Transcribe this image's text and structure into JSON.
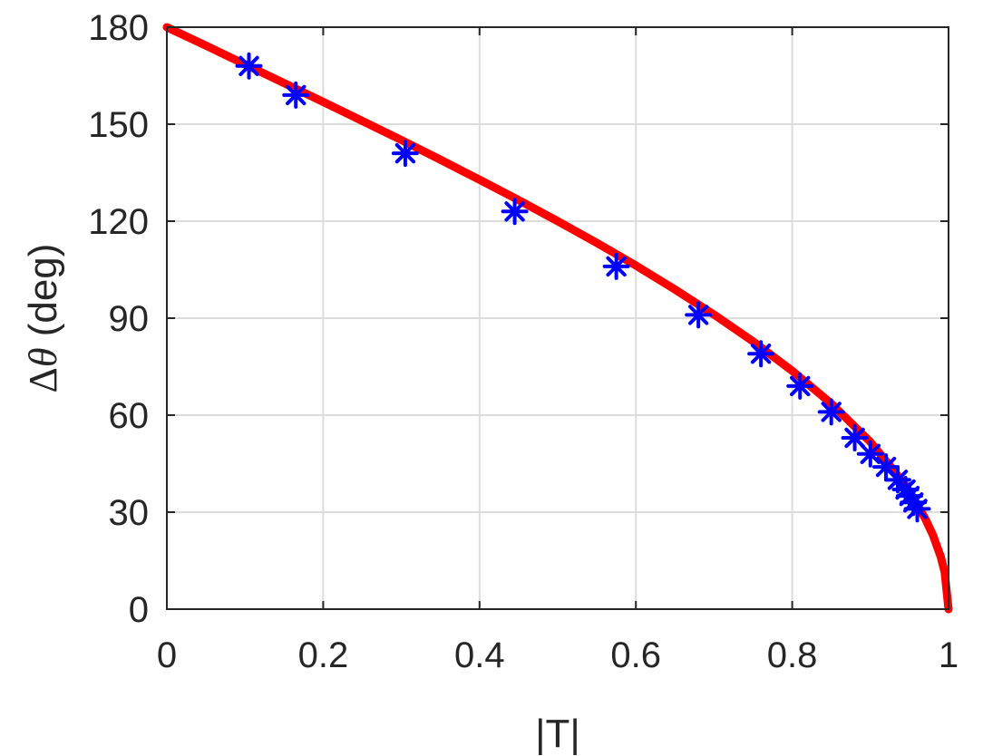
{
  "chart_data": {
    "type": "scatter",
    "xlabel": "|T|",
    "ylabel": {
      "prefix": "Δ",
      "symbol": "θ",
      "unit": " (deg)"
    },
    "xlim": [
      0,
      1
    ],
    "ylim": [
      0,
      180
    ],
    "x_ticks": [
      0,
      0.2,
      0.4,
      0.6,
      0.8,
      1
    ],
    "x_tick_labels": [
      "0",
      "0.2",
      "0.4",
      "0.6",
      "0.8",
      "1"
    ],
    "y_ticks": [
      0,
      30,
      60,
      90,
      120,
      150,
      180
    ],
    "y_tick_labels": [
      "0",
      "30",
      "60",
      "90",
      "120",
      "150",
      "180"
    ],
    "grid": true,
    "series": [
      {
        "kind": "line",
        "color": "#ff0000",
        "x": [
          0,
          0.05,
          0.1,
          0.15,
          0.2,
          0.25,
          0.3,
          0.35,
          0.4,
          0.45,
          0.5,
          0.55,
          0.6,
          0.65,
          0.7,
          0.75,
          0.8,
          0.85,
          0.9,
          0.93,
          0.95,
          0.97,
          0.98,
          0.99,
          0.995,
          1
        ],
        "y": [
          180,
          174.3,
          168.5,
          162.7,
          156.9,
          151.0,
          145.1,
          139.0,
          132.8,
          126.5,
          120.0,
          113.3,
          106.3,
          98.9,
          91.1,
          82.8,
          73.7,
          63.6,
          51.7,
          42.9,
          36.4,
          28.1,
          22.9,
          16.2,
          11.5,
          0
        ]
      },
      {
        "kind": "scatter",
        "marker": "asterisk",
        "color": "#0000ff",
        "x": [
          0.105,
          0.165,
          0.305,
          0.445,
          0.575,
          0.68,
          0.76,
          0.81,
          0.85,
          0.88,
          0.9,
          0.92,
          0.935,
          0.945,
          0.95,
          0.955,
          0.96
        ],
        "y": [
          168,
          159,
          141,
          123,
          106,
          91,
          79,
          69,
          61,
          53,
          48,
          44,
          40,
          37,
          35,
          33,
          31
        ]
      }
    ]
  }
}
